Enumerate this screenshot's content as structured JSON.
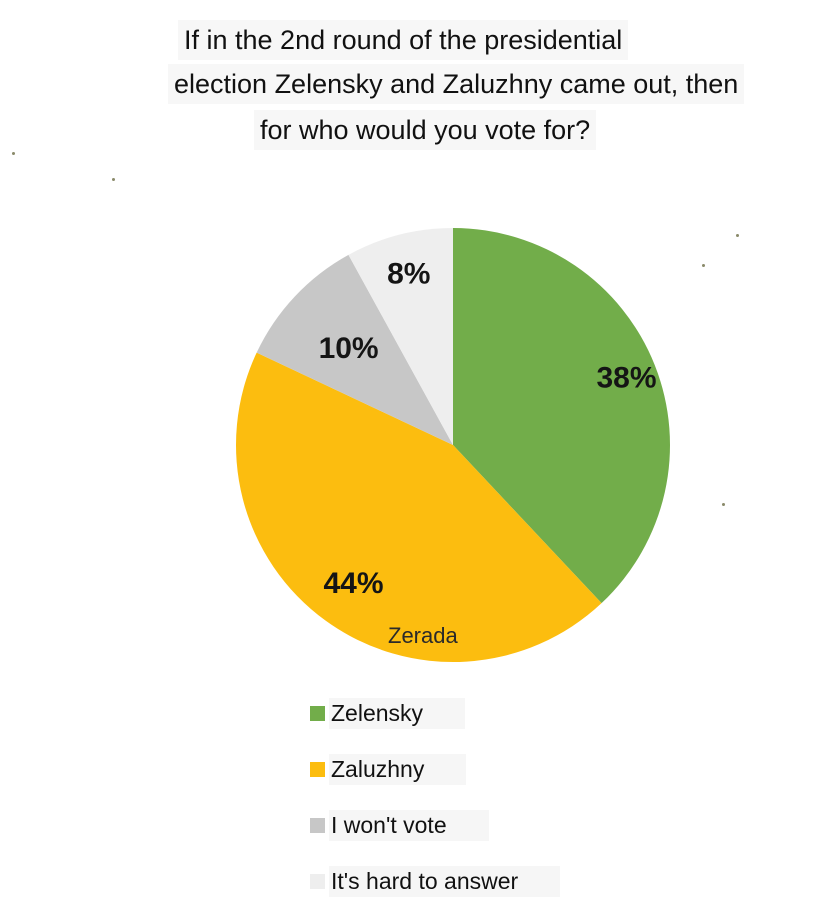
{
  "title": {
    "line1": "If in the 2nd round of the presidential",
    "line2": "election Zelensky and Zaluzhny came out, then",
    "line3": "for who would you vote for?"
  },
  "watermark": "Zerada",
  "colors": {
    "zelensky": "#72ad4a",
    "zaluzhny": "#fcbd0f",
    "wont_vote": "#c7c7c7",
    "hard_to_answer": "#eeeeee"
  },
  "chart_data": {
    "type": "pie",
    "title": "If in the 2nd round of the presidential election Zelensky and Zaluzhny came out, then for who would you vote for?",
    "slices": [
      {
        "name": "Zelensky",
        "value": 38,
        "label": "38%",
        "color": "#72ad4a"
      },
      {
        "name": "Zaluzhny",
        "value": 44,
        "label": "44%",
        "color": "#fcbd0f"
      },
      {
        "name": "I won't vote",
        "value": 10,
        "label": "10%",
        "color": "#c7c7c7"
      },
      {
        "name": "It's hard to answer",
        "value": 8,
        "label": "8%",
        "color": "#eeeeee"
      }
    ],
    "start_angle": "12 o'clock",
    "direction": "clockwise",
    "legend_placement": "bottom"
  },
  "legend": [
    {
      "label": "Zelensky",
      "color": "#72ad4a"
    },
    {
      "label": "Zaluzhny",
      "color": "#fcbd0f"
    },
    {
      "label": "I won't vote",
      "color": "#c7c7c7"
    },
    {
      "label": "It's hard to answer",
      "color": "#eeeeee"
    }
  ]
}
